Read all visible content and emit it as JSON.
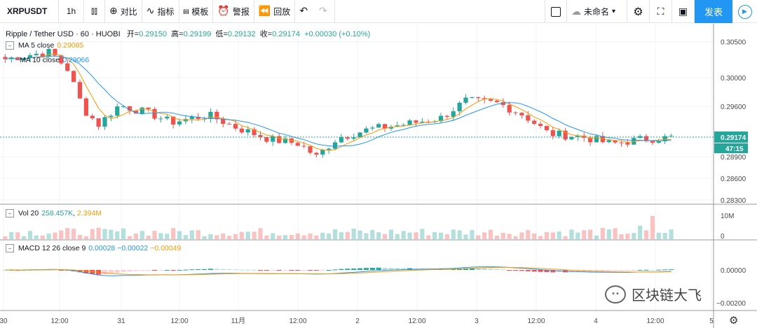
{
  "toolbar": {
    "symbol": "XRPUSDT",
    "interval": "1h",
    "compare_label": "对比",
    "indicators_label": "指标",
    "templates_label": "模板",
    "alert_label": "警报",
    "replay_label": "回放",
    "layout_name": "未命名",
    "publish_label": "发表"
  },
  "infobar": {
    "title": "Ripple / Tether USD · 60 · HUOBI",
    "open_label": "开=",
    "open": "0.29150",
    "high_label": "高=",
    "high": "0.29199",
    "low_label": "低=",
    "low": "0.29132",
    "close_label": "收=",
    "close": "0.29174",
    "change": "+0.00030 (+0.10%)"
  },
  "indicators": {
    "ma5": {
      "name": "MA 5 close",
      "value": "0.29085",
      "color": "#ff9800"
    },
    "ma10": {
      "name": "MA 10 close",
      "value": "0.29066",
      "color": "#2196f3"
    },
    "vol": {
      "name": "Vol 20",
      "value1": "258.457K",
      "value2": "2.394M"
    },
    "macd": {
      "name": "MACD 12 26 close 9",
      "v1": "0.00028",
      "v2": "−0.00022",
      "v3": "−0.00049"
    }
  },
  "axes": {
    "price_ticks": [
      "0.30500",
      "0.30000",
      "0.29600",
      "0.29174",
      "0.28900",
      "0.28600",
      "0.28300"
    ],
    "price_tag": "0.29174",
    "countdown": "47:15",
    "vol_ticks": [
      "10M",
      "0"
    ],
    "macd_ticks": [
      "0.00000",
      "−0.00200"
    ],
    "time_ticks": [
      "30",
      "12:00",
      "31",
      "12:00",
      "11月",
      "12:00",
      "2",
      "12:00",
      "3",
      "12:00",
      "4",
      "12:00",
      "5"
    ]
  },
  "colors": {
    "up": "#26a69a",
    "down": "#ef5350",
    "accent": "#2196f3"
  },
  "watermark": {
    "text": "区块链大飞"
  },
  "chart_data": {
    "type": "candlestick",
    "price_range": [
      0.2825,
      0.3075
    ],
    "current_price": 0.29174
  }
}
